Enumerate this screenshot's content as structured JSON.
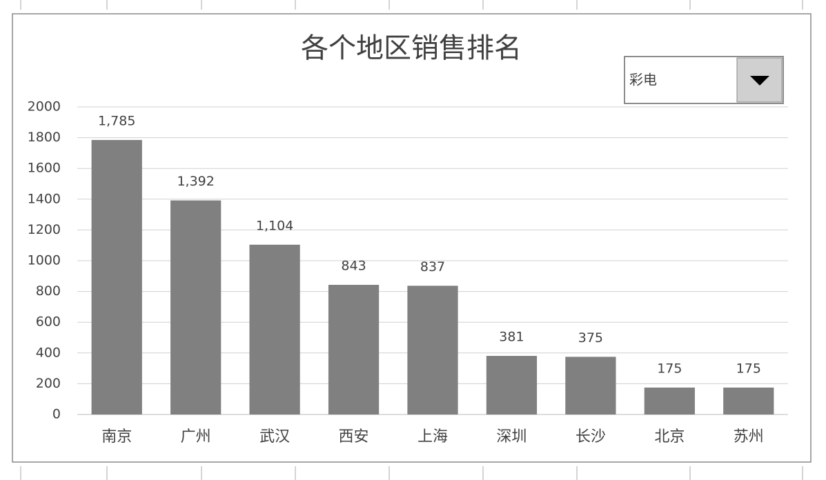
{
  "chart_data": {
    "type": "bar",
    "title": "各个地区销售排名",
    "dropdown_value": "彩电",
    "categories": [
      "南京",
      "广州",
      "武汉",
      "西安",
      "上海",
      "深圳",
      "长沙",
      "北京",
      "苏州"
    ],
    "values": [
      1785,
      1392,
      1104,
      843,
      837,
      381,
      375,
      175,
      175
    ],
    "value_labels": [
      "1,785",
      "1,392",
      "1,104",
      "843",
      "837",
      "381",
      "375",
      "175",
      "175"
    ],
    "color": "#808080",
    "ylim": [
      0,
      2000
    ],
    "yticks": [
      0,
      200,
      400,
      600,
      800,
      1000,
      1200,
      1400,
      1600,
      1800,
      2000
    ],
    "grid": true
  }
}
